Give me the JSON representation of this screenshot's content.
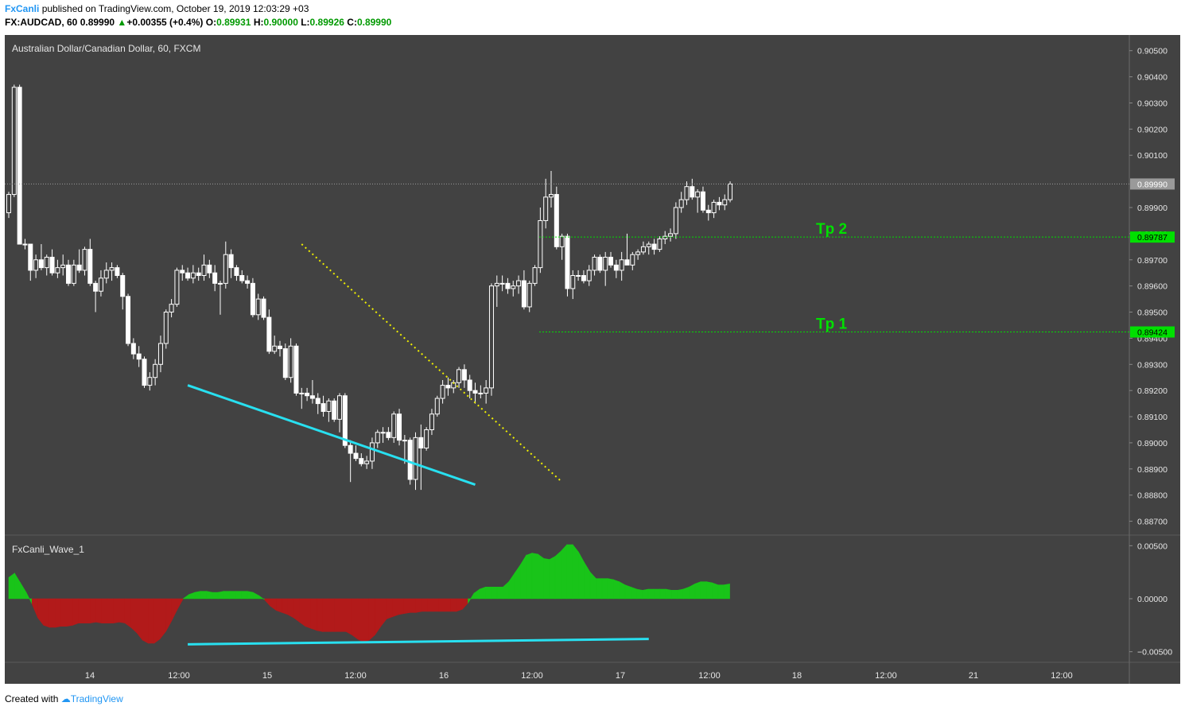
{
  "header": {
    "author": "FxCanli",
    "published": "published on TradingView.com, October 19, 2019 12:03:29 +03",
    "symbol": "FX:AUDCAD, 60",
    "last": "0.89990",
    "change_arrow": "▲",
    "change": "+0.00355 (+0.4%)",
    "o_label": "O:",
    "o": "0.89931",
    "h_label": "H:",
    "h": "0.90000",
    "l_label": "L:",
    "l": "0.89926",
    "c_label": "C:",
    "c": "0.89990"
  },
  "footer": {
    "created_with": "Created with",
    "brand": "TradingView"
  },
  "chart_data": [
    {
      "type": "candlestick",
      "title": "Australian Dollar/Canadian Dollar, 60, FXCM",
      "ylim": [
        0.8865,
        0.9056
      ],
      "y_ticks": [
        "0.90500",
        "0.90400",
        "0.90300",
        "0.90200",
        "0.90100",
        "0.89900",
        "0.89800",
        "0.89700",
        "0.89600",
        "0.89500",
        "0.89400",
        "0.89300",
        "0.89200",
        "0.89100",
        "0.89000",
        "0.88900",
        "0.88800",
        "0.88700"
      ],
      "x_ticks": [
        "14",
        "12:00",
        "15",
        "12:00",
        "16",
        "12:00",
        "17",
        "12:00",
        "18",
        "12:00",
        "21",
        "12:00"
      ],
      "current_price": "0.89990",
      "price_lines": [
        {
          "label": "Tp 2",
          "value": "0.89787",
          "color": "#00e000"
        },
        {
          "label": "Tp 1",
          "value": "0.89424",
          "color": "#00e000"
        }
      ],
      "annotations": [
        "cyan support line (higher low → lower low)",
        "yellow dotted trend line"
      ],
      "colors": {
        "background": "#424242",
        "up_candle": "#ffffff",
        "down_candle": "#ffffff",
        "trend_line": "#28e0f0",
        "dotted_line": "#f0f000"
      },
      "candles_ohlc": [
        [
          0.8988,
          0.8996,
          0.8986,
          0.8995
        ],
        [
          0.8995,
          0.9037,
          0.8994,
          0.9036
        ],
        [
          0.9036,
          0.9037,
          0.8976,
          0.8976
        ],
        [
          0.8976,
          0.8978,
          0.8974,
          0.8976
        ],
        [
          0.8976,
          0.8976,
          0.8962,
          0.8966
        ],
        [
          0.8966,
          0.8972,
          0.8963,
          0.897
        ],
        [
          0.897,
          0.8976,
          0.8966,
          0.8967
        ],
        [
          0.8967,
          0.8972,
          0.8964,
          0.8971
        ],
        [
          0.8971,
          0.8974,
          0.8964,
          0.8965
        ],
        [
          0.8965,
          0.897,
          0.8963,
          0.8967
        ],
        [
          0.8967,
          0.8972,
          0.8964,
          0.8968
        ],
        [
          0.8968,
          0.897,
          0.896,
          0.8961
        ],
        [
          0.8961,
          0.897,
          0.896,
          0.8968
        ],
        [
          0.8968,
          0.8974,
          0.8965,
          0.8966
        ],
        [
          0.8966,
          0.8975,
          0.8964,
          0.8974
        ],
        [
          0.8974,
          0.8978,
          0.896,
          0.8961
        ],
        [
          0.8961,
          0.8962,
          0.895,
          0.8958
        ],
        [
          0.8958,
          0.8966,
          0.8956,
          0.8963
        ],
        [
          0.8963,
          0.8969,
          0.8961,
          0.8966
        ],
        [
          0.8966,
          0.8969,
          0.8962,
          0.8967
        ],
        [
          0.8967,
          0.8968,
          0.8963,
          0.8964
        ],
        [
          0.8964,
          0.8965,
          0.8951,
          0.8956
        ],
        [
          0.8956,
          0.8957,
          0.8937,
          0.8938
        ],
        [
          0.8938,
          0.894,
          0.8932,
          0.8934
        ],
        [
          0.8934,
          0.8937,
          0.8929,
          0.8932
        ],
        [
          0.8932,
          0.8933,
          0.8921,
          0.8922
        ],
        [
          0.8922,
          0.8927,
          0.892,
          0.8925
        ],
        [
          0.8925,
          0.8932,
          0.8922,
          0.893
        ],
        [
          0.893,
          0.8941,
          0.8927,
          0.8938
        ],
        [
          0.8938,
          0.8951,
          0.8936,
          0.895
        ],
        [
          0.895,
          0.8955,
          0.8948,
          0.8953
        ],
        [
          0.8953,
          0.8967,
          0.8952,
          0.8966
        ],
        [
          0.8966,
          0.8968,
          0.8962,
          0.8965
        ],
        [
          0.8965,
          0.8967,
          0.8962,
          0.8963
        ],
        [
          0.8963,
          0.8968,
          0.8961,
          0.8965
        ],
        [
          0.8965,
          0.8967,
          0.8962,
          0.8964
        ],
        [
          0.8964,
          0.8972,
          0.8962,
          0.8968
        ],
        [
          0.8968,
          0.897,
          0.8963,
          0.8965
        ],
        [
          0.8965,
          0.8968,
          0.8958,
          0.8961
        ],
        [
          0.8961,
          0.8962,
          0.8949,
          0.8961
        ],
        [
          0.8961,
          0.8977,
          0.8959,
          0.8972
        ],
        [
          0.8972,
          0.8974,
          0.8963,
          0.8967
        ],
        [
          0.8967,
          0.8968,
          0.8962,
          0.8964
        ],
        [
          0.8964,
          0.8966,
          0.8961,
          0.8962
        ],
        [
          0.8962,
          0.8964,
          0.8959,
          0.8961
        ],
        [
          0.8961,
          0.8963,
          0.8948,
          0.8949
        ],
        [
          0.8949,
          0.8957,
          0.8947,
          0.8955
        ],
        [
          0.8955,
          0.8956,
          0.8947,
          0.8948
        ],
        [
          0.8948,
          0.8951,
          0.8934,
          0.8935
        ],
        [
          0.8935,
          0.8941,
          0.8934,
          0.8937
        ],
        [
          0.8937,
          0.8939,
          0.8933,
          0.8936
        ],
        [
          0.8936,
          0.8938,
          0.8924,
          0.8925
        ],
        [
          0.8925,
          0.894,
          0.8923,
          0.8937
        ],
        [
          0.8937,
          0.8938,
          0.8918,
          0.8919
        ],
        [
          0.8919,
          0.8921,
          0.8913,
          0.8919
        ],
        [
          0.8919,
          0.8921,
          0.8916,
          0.8918
        ],
        [
          0.8918,
          0.8924,
          0.8915,
          0.8917
        ],
        [
          0.8917,
          0.8919,
          0.8911,
          0.8915
        ],
        [
          0.8915,
          0.8918,
          0.891,
          0.8912
        ],
        [
          0.8912,
          0.8917,
          0.8908,
          0.8916
        ],
        [
          0.8916,
          0.8917,
          0.8908,
          0.8909
        ],
        [
          0.8909,
          0.8919,
          0.8904,
          0.8918
        ],
        [
          0.8918,
          0.8919,
          0.8898,
          0.8899
        ],
        [
          0.8899,
          0.8901,
          0.8885,
          0.8896
        ],
        [
          0.8896,
          0.8899,
          0.8893,
          0.8894
        ],
        [
          0.8894,
          0.8896,
          0.8891,
          0.8892
        ],
        [
          0.8892,
          0.8895,
          0.889,
          0.8893
        ],
        [
          0.8893,
          0.8902,
          0.889,
          0.89
        ],
        [
          0.89,
          0.8905,
          0.8898,
          0.8904
        ],
        [
          0.8904,
          0.8906,
          0.89,
          0.8904
        ],
        [
          0.8904,
          0.8906,
          0.8901,
          0.8902
        ],
        [
          0.8902,
          0.8912,
          0.89,
          0.8911
        ],
        [
          0.8911,
          0.8913,
          0.8899,
          0.8901
        ],
        [
          0.8901,
          0.8903,
          0.8892,
          0.8901
        ],
        [
          0.8901,
          0.8902,
          0.8884,
          0.8886
        ],
        [
          0.8886,
          0.8904,
          0.8882,
          0.8902
        ],
        [
          0.8902,
          0.8907,
          0.8882,
          0.8898
        ],
        [
          0.8898,
          0.8906,
          0.8897,
          0.8905
        ],
        [
          0.8905,
          0.8913,
          0.8903,
          0.8911
        ],
        [
          0.8911,
          0.8918,
          0.891,
          0.8917
        ],
        [
          0.8917,
          0.8924,
          0.8915,
          0.8922
        ],
        [
          0.8922,
          0.8925,
          0.8918,
          0.8921
        ],
        [
          0.8921,
          0.8924,
          0.8919,
          0.8923
        ],
        [
          0.8923,
          0.8929,
          0.8921,
          0.8928
        ],
        [
          0.8928,
          0.893,
          0.8921,
          0.8924
        ],
        [
          0.8924,
          0.8926,
          0.8917,
          0.892
        ],
        [
          0.892,
          0.8923,
          0.8915,
          0.8919
        ],
        [
          0.8919,
          0.8922,
          0.8917,
          0.8919
        ],
        [
          0.8919,
          0.8924,
          0.8915,
          0.8921
        ],
        [
          0.8921,
          0.8961,
          0.8918,
          0.896
        ],
        [
          0.896,
          0.8964,
          0.8952,
          0.8961
        ],
        [
          0.8961,
          0.8964,
          0.8958,
          0.8961
        ],
        [
          0.8961,
          0.8963,
          0.8957,
          0.8959
        ],
        [
          0.8959,
          0.8962,
          0.8956,
          0.896
        ],
        [
          0.896,
          0.8964,
          0.8957,
          0.8962
        ],
        [
          0.8962,
          0.8966,
          0.8951,
          0.8952
        ],
        [
          0.8952,
          0.8962,
          0.895,
          0.8961
        ],
        [
          0.8961,
          0.8968,
          0.896,
          0.8967
        ],
        [
          0.8967,
          0.899,
          0.8965,
          0.8985
        ],
        [
          0.8985,
          0.9001,
          0.8982,
          0.8994
        ],
        [
          0.8994,
          0.9004,
          0.899,
          0.8995
        ],
        [
          0.8995,
          0.8998,
          0.8974,
          0.8975
        ],
        [
          0.8975,
          0.898,
          0.897,
          0.8979
        ],
        [
          0.8979,
          0.898,
          0.8956,
          0.8959
        ],
        [
          0.8959,
          0.8966,
          0.8955,
          0.8964
        ],
        [
          0.8964,
          0.8966,
          0.8962,
          0.8964
        ],
        [
          0.8964,
          0.8966,
          0.8961,
          0.8962
        ],
        [
          0.8962,
          0.8968,
          0.896,
          0.8966
        ],
        [
          0.8966,
          0.8972,
          0.8964,
          0.8971
        ],
        [
          0.8971,
          0.8972,
          0.8965,
          0.8966
        ],
        [
          0.8966,
          0.8973,
          0.896,
          0.8971
        ],
        [
          0.8971,
          0.8973,
          0.8967,
          0.8968
        ],
        [
          0.8968,
          0.897,
          0.8963,
          0.8966
        ],
        [
          0.8966,
          0.8973,
          0.8962,
          0.897
        ],
        [
          0.897,
          0.898,
          0.8968,
          0.8968
        ],
        [
          0.8968,
          0.8973,
          0.8966,
          0.8972
        ],
        [
          0.8972,
          0.8974,
          0.897,
          0.8973
        ],
        [
          0.8973,
          0.8977,
          0.8972,
          0.8975
        ],
        [
          0.8975,
          0.8977,
          0.8972,
          0.8976
        ],
        [
          0.8976,
          0.8978,
          0.8972,
          0.8974
        ],
        [
          0.8974,
          0.8979,
          0.8973,
          0.8978
        ],
        [
          0.8978,
          0.8981,
          0.8976,
          0.8979
        ],
        [
          0.8979,
          0.8982,
          0.8977,
          0.898
        ],
        [
          0.898,
          0.8992,
          0.8978,
          0.899
        ],
        [
          0.899,
          0.8996,
          0.8988,
          0.8993
        ],
        [
          0.8993,
          0.9,
          0.8991,
          0.8998
        ],
        [
          0.8998,
          0.9001,
          0.8993,
          0.8994
        ],
        [
          0.8994,
          0.8997,
          0.8988,
          0.8996
        ],
        [
          0.8996,
          0.8998,
          0.8988,
          0.8989
        ],
        [
          0.8989,
          0.8991,
          0.8985,
          0.8988
        ],
        [
          0.8988,
          0.8993,
          0.8986,
          0.8992
        ],
        [
          0.8992,
          0.8994,
          0.8989,
          0.8991
        ],
        [
          0.8991,
          0.8995,
          0.8989,
          0.8993
        ],
        [
          0.8993,
          0.9,
          0.8992,
          0.8999
        ]
      ]
    },
    {
      "type": "area",
      "title": "FxCanli_Wave_1",
      "ylim": [
        -0.0051,
        0.0051
      ],
      "y_ticks": [
        "0.00500",
        "0.00000",
        "−0.00500"
      ],
      "colors": {
        "positive": "#19c419",
        "negative": "#b21a1a",
        "trend_line": "#28e0f0"
      },
      "series": [
        {
          "values": [
            0.002,
            0.0024,
            0.0015,
            0.0006,
            -0.0005,
            -0.0018,
            -0.0025,
            -0.0027,
            -0.0027,
            -0.0026,
            -0.0026,
            -0.0025,
            -0.0023,
            -0.0023,
            -0.0023,
            -0.0022,
            -0.0023,
            -0.0023,
            -0.0023,
            -0.0022,
            -0.0023,
            -0.0027,
            -0.0032,
            -0.0039,
            -0.0042,
            -0.0042,
            -0.0038,
            -0.0031,
            -0.0021,
            -0.001,
            0.0,
            0.0004,
            0.0006,
            0.0007,
            0.0007,
            0.0006,
            0.0006,
            0.0007,
            0.0007,
            0.0007,
            0.0007,
            0.0007,
            0.0006,
            0.0003,
            -0.0001,
            -0.0007,
            -0.0011,
            -0.0013,
            -0.0015,
            -0.0018,
            -0.0022,
            -0.0026,
            -0.0028,
            -0.003,
            -0.0031,
            -0.0031,
            -0.0031,
            -0.0031,
            -0.0031,
            -0.0034,
            -0.0038,
            -0.0041,
            -0.0039,
            -0.0034,
            -0.0026,
            -0.0019,
            -0.0017,
            -0.0015,
            -0.0014,
            -0.0013,
            -0.0013,
            -0.0012,
            -0.0012,
            -0.0012,
            -0.0012,
            -0.0012,
            -0.0012,
            -0.0012,
            -0.001,
            -0.0004,
            0.0005,
            0.0009,
            0.0011,
            0.0011,
            0.0011,
            0.0011,
            0.0016,
            0.0024,
            0.0032,
            0.0041,
            0.0043,
            0.0042,
            0.0038,
            0.0037,
            0.004,
            0.0045,
            0.0051,
            0.0051,
            0.0044,
            0.0034,
            0.0025,
            0.0019,
            0.0019,
            0.0019,
            0.0018,
            0.0016,
            0.0013,
            0.0011,
            0.0009,
            0.0008,
            0.0009,
            0.0009,
            0.0009,
            0.0009,
            0.0008,
            0.0008,
            0.0009,
            0.0011,
            0.0014,
            0.0016,
            0.0016,
            0.0015,
            0.0013,
            0.0013,
            0.0014
          ]
        }
      ]
    }
  ]
}
